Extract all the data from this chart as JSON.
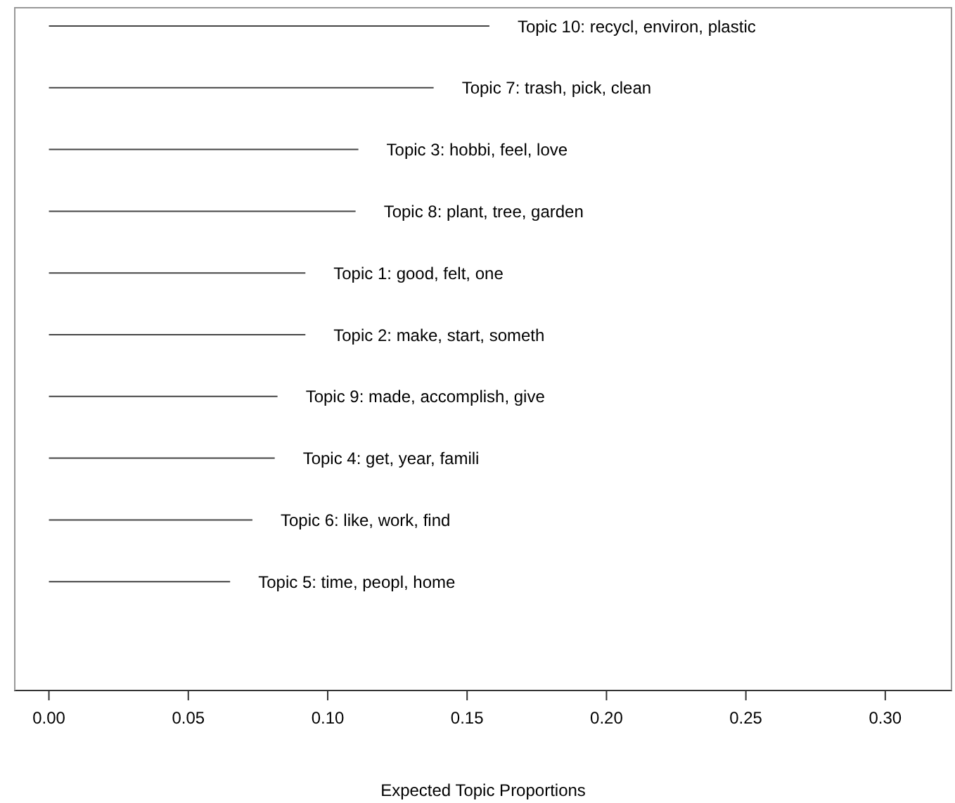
{
  "chart_data": {
    "type": "bar",
    "orientation": "horizontal",
    "xlabel": "Expected Topic Proportions",
    "categories": [
      "Topic 10: recycl, environ, plastic",
      "Topic 7: trash, pick, clean",
      "Topic 3: hobbi, feel, love",
      "Topic 8: plant, tree, garden",
      "Topic 1: good, felt, one",
      "Topic 2: make, start, someth",
      "Topic 9: made, accomplish, give",
      "Topic 4: get, year, famili",
      "Topic 6: like, work, find",
      "Topic 5: time, peopl, home"
    ],
    "values": [
      0.158,
      0.138,
      0.111,
      0.11,
      0.092,
      0.092,
      0.082,
      0.081,
      0.073,
      0.065
    ],
    "color": "#444444",
    "xlim": [
      -0.0125,
      0.324
    ],
    "xticks": [
      {
        "value": 0,
        "label": "0.00"
      },
      {
        "value": 0.05,
        "label": "0.05"
      },
      {
        "value": 0.1,
        "label": "0.10"
      },
      {
        "value": 0.15,
        "label": "0.15"
      },
      {
        "value": 0.2,
        "label": "0.20"
      },
      {
        "value": 0.25,
        "label": "0.25"
      },
      {
        "value": 0.3,
        "label": "0.30"
      }
    ],
    "tick_labels": "x"
  }
}
